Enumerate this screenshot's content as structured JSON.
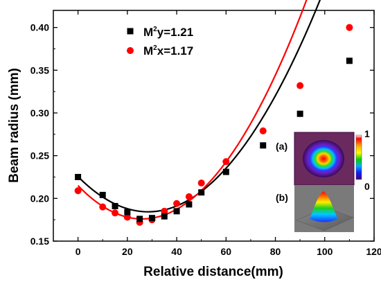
{
  "chart_data": {
    "type": "scatter",
    "xlabel": "Relative distance(mm)",
    "ylabel": "Beam radius (mm)",
    "xlim": [
      -10,
      120
    ],
    "ylim": [
      0.15,
      0.42
    ],
    "xticks": [
      0,
      20,
      40,
      60,
      80,
      100,
      120
    ],
    "yticks": [
      0.15,
      0.2,
      0.25,
      0.3,
      0.35,
      0.4
    ],
    "ytick_labels": [
      "0.15",
      "0.20",
      "0.25",
      "0.30",
      "0.35",
      "0.40"
    ],
    "grid": false,
    "legend_position": "top-left",
    "series": [
      {
        "name": "M²y=1.21",
        "marker": "square",
        "color": "#000000",
        "x": [
          0,
          10,
          15,
          20,
          25,
          30,
          35,
          40,
          45,
          50,
          60,
          75,
          90,
          110
        ],
        "y": [
          0.225,
          0.204,
          0.191,
          0.184,
          0.176,
          0.177,
          0.179,
          0.185,
          0.193,
          0.207,
          0.231,
          0.262,
          0.299,
          0.361
        ],
        "fit": {
          "a": 5.105e-05,
          "b": -0.0029,
          "c": 0.2255,
          "x_range": [
            0,
            110
          ]
        }
      },
      {
        "name": "M²x=1.17",
        "marker": "circle",
        "color": "#ff0000",
        "x": [
          0,
          10,
          15,
          20,
          25,
          30,
          35,
          40,
          45,
          50,
          60,
          75,
          90,
          110
        ],
        "y": [
          0.209,
          0.19,
          0.183,
          0.178,
          0.172,
          0.175,
          0.185,
          0.194,
          0.202,
          0.218,
          0.243,
          0.279,
          0.332,
          0.4
        ],
        "fit": {
          "a": 5.77e-05,
          "b": -0.003,
          "c": 0.215,
          "x_range": [
            0,
            110
          ]
        }
      }
    ],
    "legend": [
      {
        "prefix": "M",
        "sup": "2",
        "suffix": "y=1.21"
      },
      {
        "prefix": "M",
        "sup": "2",
        "suffix": "x=1.17"
      }
    ],
    "inset": {
      "label_a": "(a)",
      "label_b": "(b)",
      "colorbar_max": "1",
      "colorbar_min": "0"
    }
  }
}
